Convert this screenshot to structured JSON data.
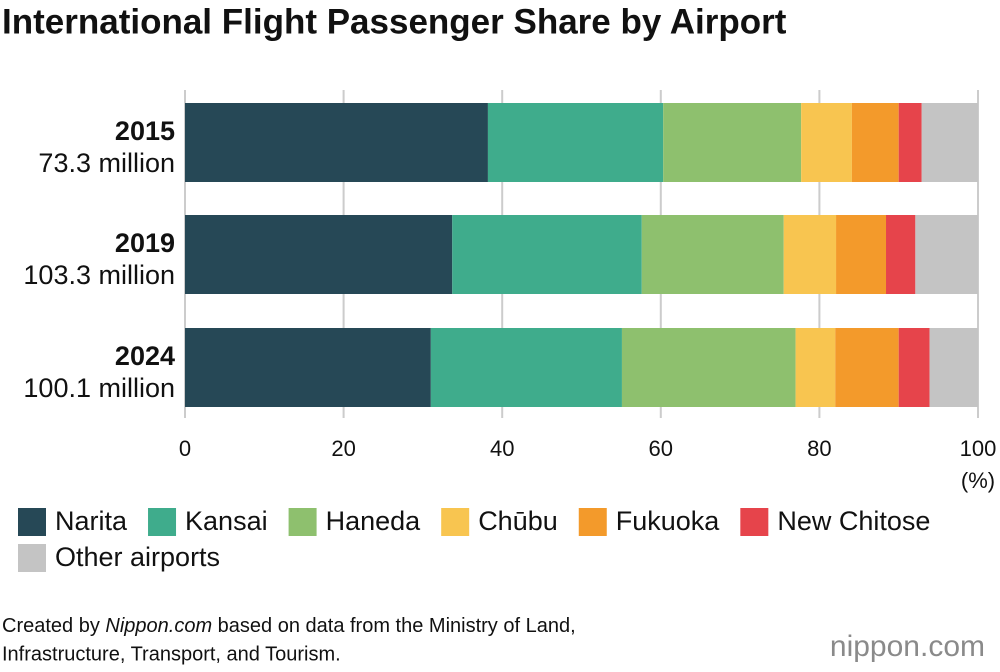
{
  "chart_data": {
    "type": "stacked-bar-horizontal",
    "title": "International Flight Passenger Share by Airport",
    "categories": [
      "2015",
      "2019",
      "2024"
    ],
    "category_totals": [
      "73.3 million",
      "103.3 million",
      "100.1 million"
    ],
    "series": [
      {
        "name": "Narita",
        "color": "#264856",
        "values": [
          38.2,
          33.7,
          31.0
        ]
      },
      {
        "name": "Kansai",
        "color": "#3fac8c",
        "values": [
          22.1,
          23.9,
          24.1
        ]
      },
      {
        "name": "Haneda",
        "color": "#8ec06e",
        "values": [
          17.4,
          17.9,
          21.9
        ]
      },
      {
        "name": "Chūbu",
        "color": "#f8c550",
        "values": [
          6.4,
          6.6,
          5.0
        ]
      },
      {
        "name": "Fukuoka",
        "color": "#f39a2b",
        "values": [
          5.9,
          6.3,
          8.0
        ]
      },
      {
        "name": "New Chitose",
        "color": "#e6444b",
        "values": [
          2.9,
          3.7,
          3.9
        ]
      },
      {
        "name": "Other airports",
        "color": "#c4c4c4",
        "values": [
          7.1,
          7.9,
          6.1
        ]
      }
    ],
    "xlim": [
      0,
      100
    ],
    "xticks": [
      0,
      20,
      40,
      60,
      80,
      100
    ],
    "x_unit": "(%)",
    "grid": true,
    "source": {
      "prefix": "Created by ",
      "italic": "Nippon.com",
      "rest": " based on data from the Ministry of Land,",
      "line2": "Infrastructure, Transport, and Tourism."
    },
    "logo": "nippon.com"
  }
}
